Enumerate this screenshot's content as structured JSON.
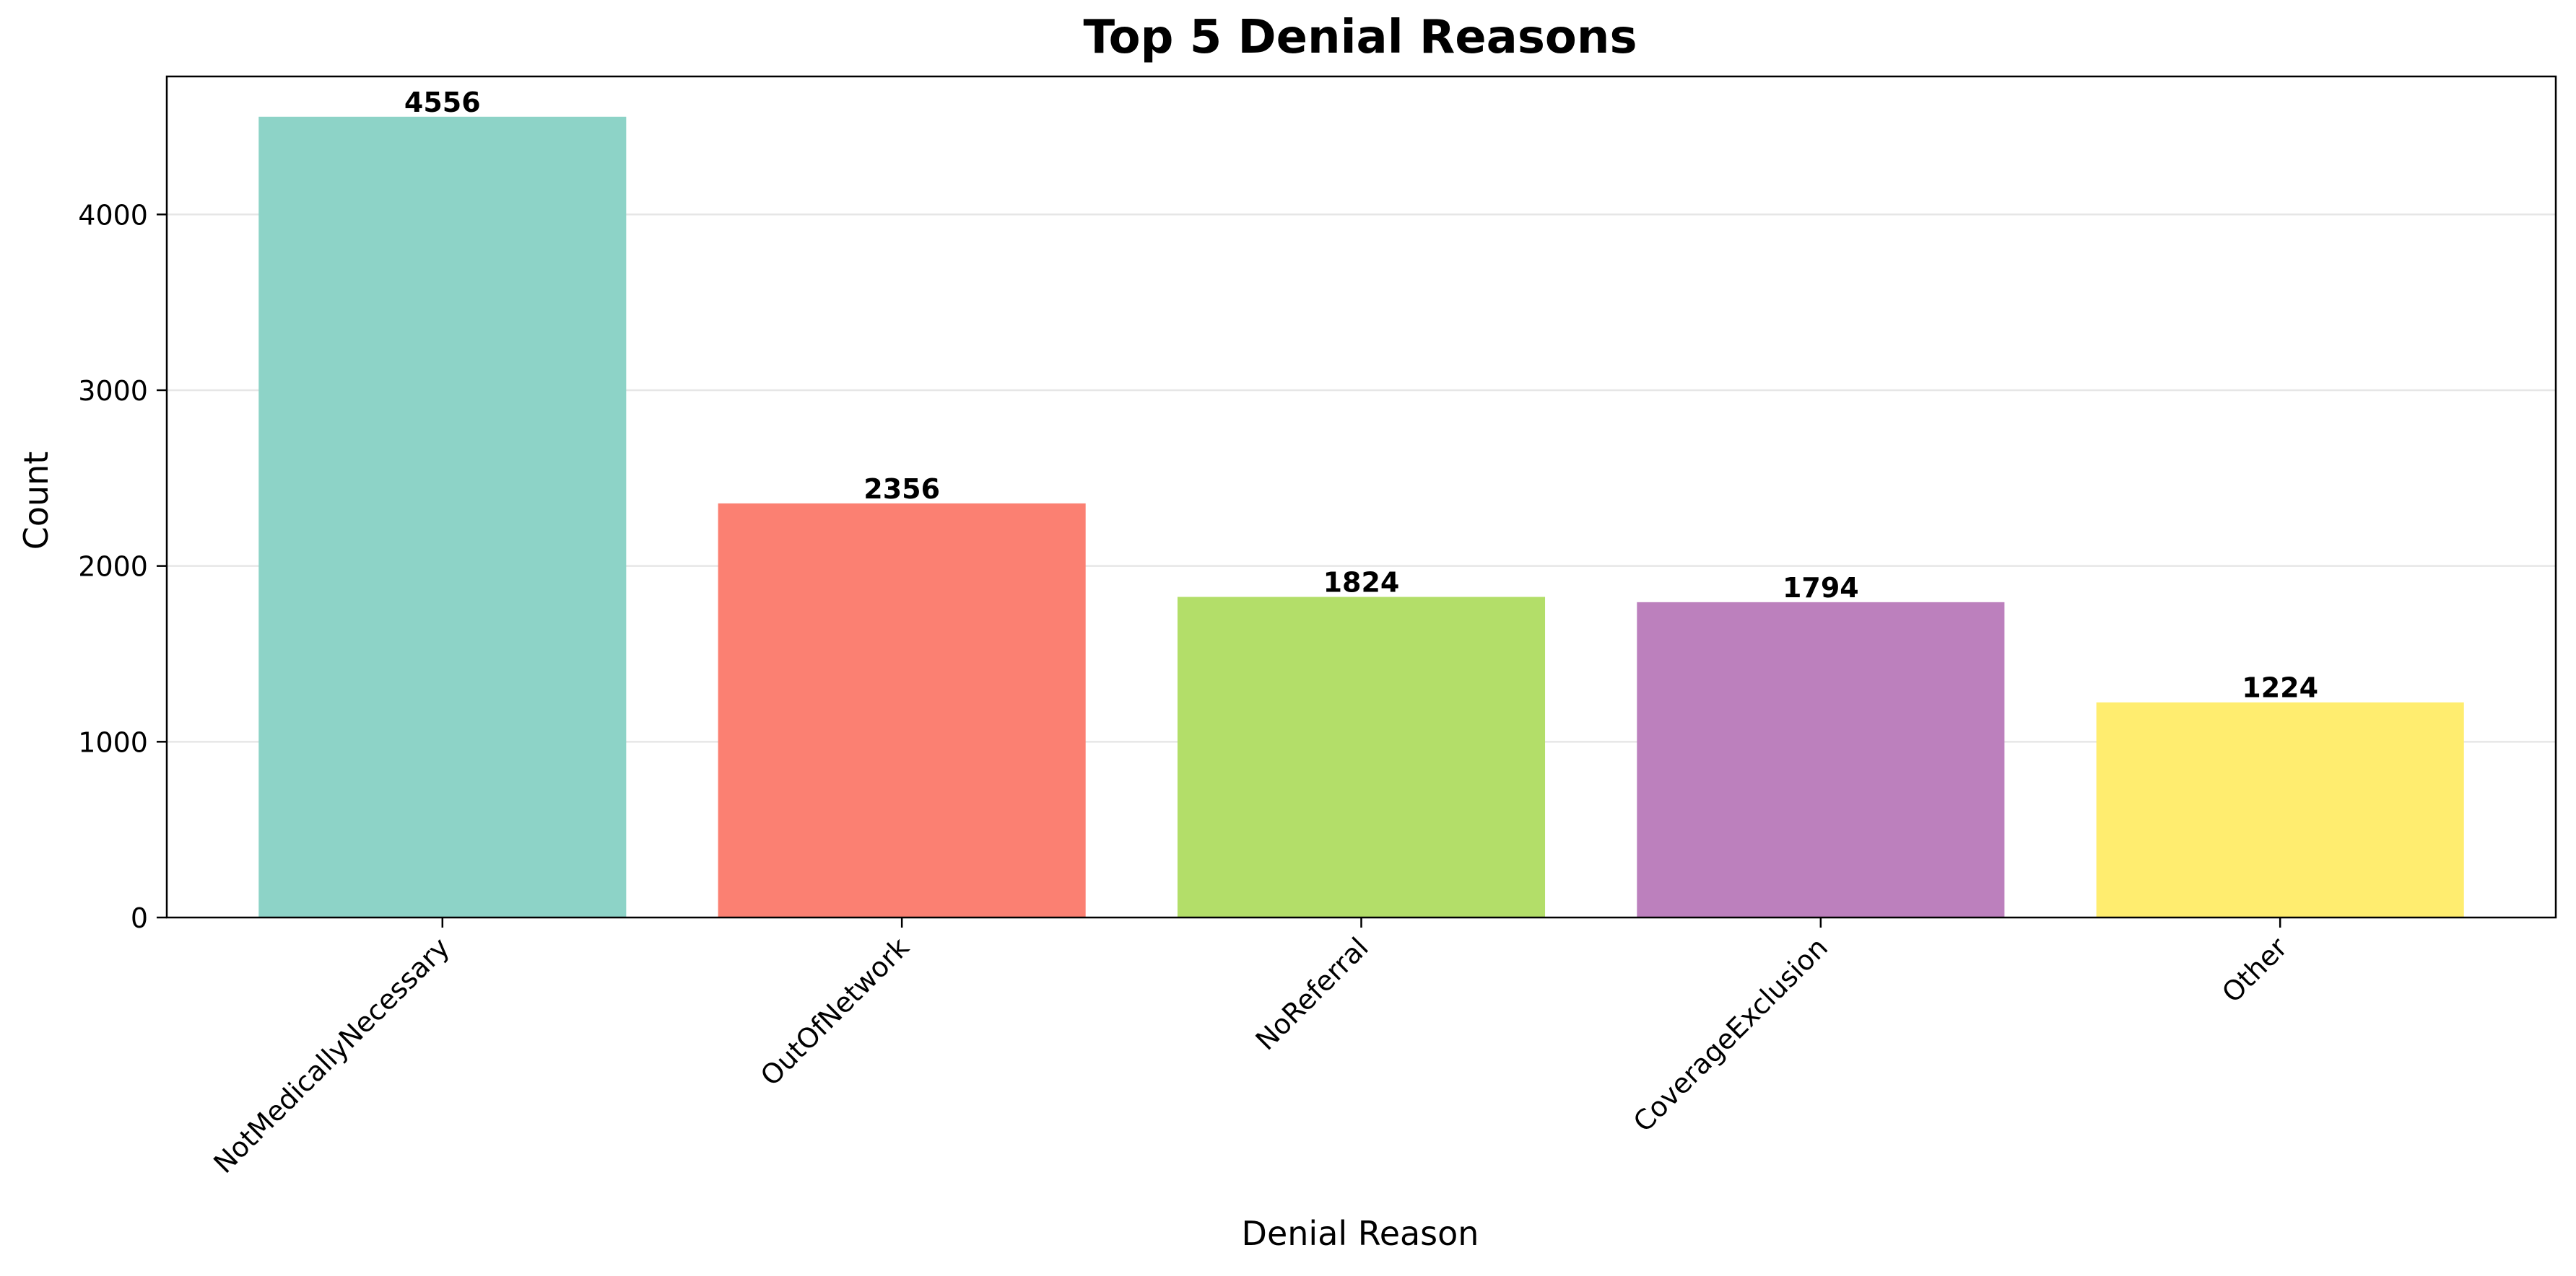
{
  "chart_data": {
    "type": "bar",
    "title": "Top 5 Denial Reasons",
    "xlabel": "Denial Reason",
    "ylabel": "Count",
    "categories": [
      "NotMedicallyNecessary",
      "OutOfNetwork",
      "NoReferral",
      "CoverageExclusion",
      "Other"
    ],
    "values": [
      4556,
      2356,
      1824,
      1794,
      1224
    ],
    "value_labels": [
      "4556",
      "2356",
      "1824",
      "1794",
      "1224"
    ],
    "colors": [
      "#8dd3c7",
      "#fb8072",
      "#b3de69",
      "#bc80bd",
      "#ffed6f"
    ],
    "ylim": [
      0,
      4785
    ],
    "yticks": [
      0,
      1000,
      2000,
      3000,
      4000
    ],
    "ytick_labels": [
      "0",
      "1000",
      "2000",
      "3000",
      "4000"
    ],
    "grid": "y",
    "legend": "none"
  }
}
